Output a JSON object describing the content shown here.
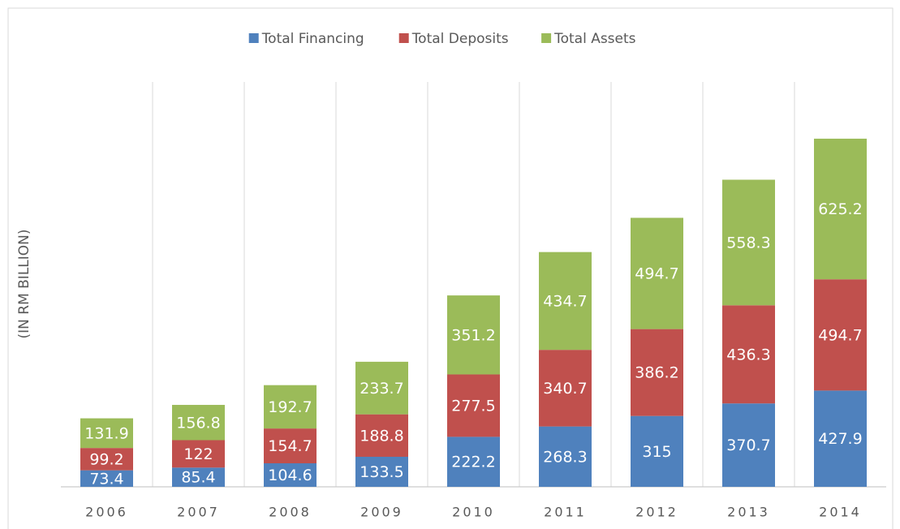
{
  "chart_data": {
    "type": "stacked_bar",
    "ylabel": "(IN RM BILLION)",
    "categories": [
      "2006",
      "2007",
      "2008",
      "2009",
      "2010",
      "2011",
      "2012",
      "2013",
      "2014"
    ],
    "series": [
      {
        "name": "Total Financing",
        "color": "#4f81bd",
        "values": [
          73.4,
          85.4,
          104.6,
          133.5,
          222.2,
          268.3,
          315,
          370.7,
          427.9
        ]
      },
      {
        "name": "Total Deposits",
        "color": "#c0504d",
        "values": [
          99.2,
          122,
          154.7,
          188.8,
          277.5,
          340.7,
          386.2,
          436.3,
          494.7
        ]
      },
      {
        "name": "Total Assets",
        "color": "#9bbb59",
        "values": [
          131.9,
          156.8,
          192.7,
          233.7,
          351.2,
          434.7,
          494.7,
          558.3,
          625.2
        ]
      }
    ],
    "ylim": [
      0,
      1800
    ],
    "legend": "top"
  }
}
